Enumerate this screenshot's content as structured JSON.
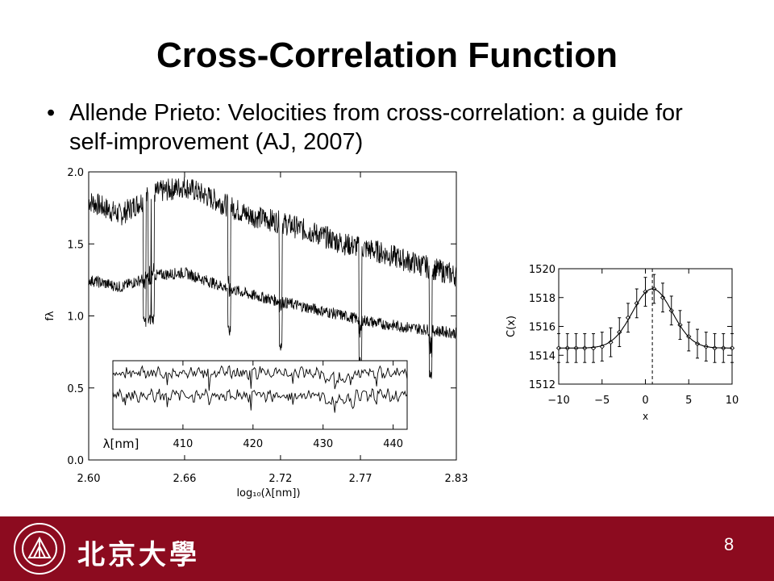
{
  "slide": {
    "title": "Cross-Correlation Function",
    "bullet_symbol": "•",
    "bullet": "Allende Prieto: Velocities from cross-correlation: a guide for self-improvement (AJ, 2007)",
    "page_number": "8"
  },
  "footer": {
    "university_name_cn": "北京大學",
    "logo_text": "PEKING UNIVERSITY 1898",
    "background_color": "#8c0b1f"
  },
  "chart_data": [
    {
      "type": "line",
      "name_role": "main spectra plot",
      "xlabel": "log₁₀(λ[nm])",
      "ylabel": "fλ",
      "xlim": [
        2.6,
        2.83
      ],
      "ylim": [
        0.0,
        2.0
      ],
      "xticks": [
        "2.60",
        "2.66",
        "2.72",
        "2.77",
        "2.83"
      ],
      "xtick_values": [
        2.6,
        2.66,
        2.72,
        2.77,
        2.83
      ],
      "yticks": [
        "0.0",
        "0.5",
        "1.0",
        "1.5",
        "2.0"
      ],
      "ytick_values": [
        0.0,
        0.5,
        1.0,
        1.5,
        2.0
      ],
      "series": [
        {
          "values_x": [
            2.6,
            2.62,
            2.64,
            2.66,
            2.68,
            2.7,
            2.72,
            2.74,
            2.76,
            2.78,
            2.8,
            2.83
          ],
          "values_y": [
            1.8,
            1.7,
            1.85,
            1.9,
            1.8,
            1.7,
            1.65,
            1.58,
            1.5,
            1.45,
            1.38,
            1.28
          ]
        },
        {
          "values_x": [
            2.6,
            2.62,
            2.64,
            2.66,
            2.68,
            2.7,
            2.72,
            2.74,
            2.76,
            2.78,
            2.8,
            2.83
          ],
          "values_y": [
            1.25,
            1.2,
            1.28,
            1.3,
            1.22,
            1.15,
            1.1,
            1.05,
            1.0,
            0.95,
            0.92,
            0.88
          ]
        }
      ],
      "absorption_lines_x": [
        2.635,
        2.638,
        2.64,
        2.688,
        2.72,
        2.77,
        2.814
      ],
      "inset": {
        "xlabel": "λ[nm]",
        "xlim": [
          400,
          442
        ],
        "xticks": [
          "410",
          "420",
          "430",
          "440"
        ],
        "xtick_values": [
          410,
          420,
          430,
          440
        ]
      }
    },
    {
      "type": "scatter",
      "name_role": "cross-correlation function plot",
      "xlabel": "x",
      "ylabel": "C(x)",
      "xlim": [
        -10,
        10
      ],
      "ylim": [
        1512,
        1520
      ],
      "xticks": [
        "−10",
        "−5",
        "0",
        "5",
        "10"
      ],
      "xtick_values": [
        -10,
        -5,
        0,
        5,
        10
      ],
      "yticks": [
        "1512",
        "1514",
        "1516",
        "1518",
        "1520"
      ],
      "ytick_values": [
        1512,
        1514,
        1516,
        1518,
        1520
      ],
      "x": [
        -10,
        -9,
        -8,
        -7,
        -6,
        -5,
        -4,
        -3,
        -2,
        -1,
        0,
        1,
        2,
        3,
        4,
        5,
        6,
        7,
        8,
        9,
        10
      ],
      "y": [
        1514.5,
        1514.5,
        1514.5,
        1514.5,
        1514.5,
        1514.6,
        1514.9,
        1515.6,
        1516.6,
        1517.6,
        1518.4,
        1518.6,
        1518.0,
        1517.1,
        1516.1,
        1515.3,
        1514.8,
        1514.6,
        1514.5,
        1514.5,
        1514.5
      ],
      "error": 1.0,
      "fit_peak_x": 0.8,
      "vertical_line_x": 0.8
    }
  ]
}
